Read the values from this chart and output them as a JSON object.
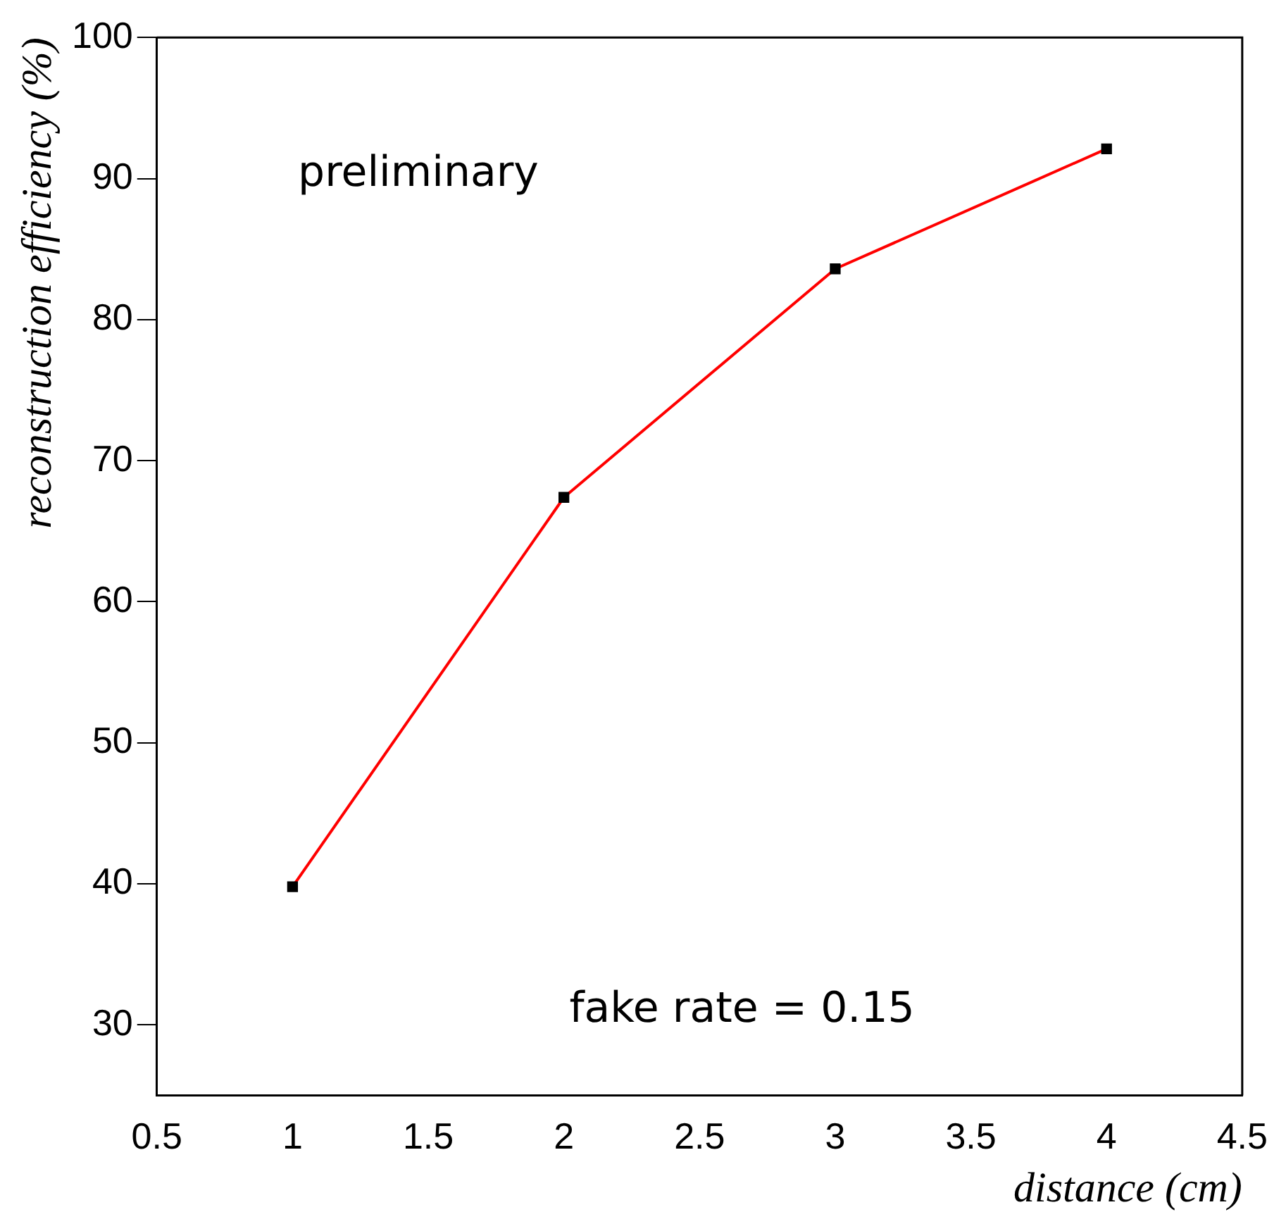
{
  "chart_data": {
    "type": "line",
    "xlabel": "distance (cm)",
    "ylabel": "reconstruction efficiency (%)",
    "annotations": [
      "preliminary",
      "fake rate = 0.15"
    ],
    "series": [
      {
        "color": "#ff0000",
        "x": [
          1,
          2,
          3,
          4
        ],
        "values": [
          39.8,
          67.4,
          83.6,
          92.1
        ]
      }
    ],
    "xlim": [
      0.5,
      4.5
    ],
    "xticks": [
      0.5,
      1,
      1.5,
      2,
      2.5,
      3,
      3.5,
      4,
      4.5
    ],
    "ylim": [
      25,
      100
    ],
    "yticks": [
      30,
      40,
      50,
      60,
      70,
      80,
      90,
      100
    ],
    "grid": false,
    "legend": false,
    "marker": "square",
    "line_style": "solid"
  }
}
